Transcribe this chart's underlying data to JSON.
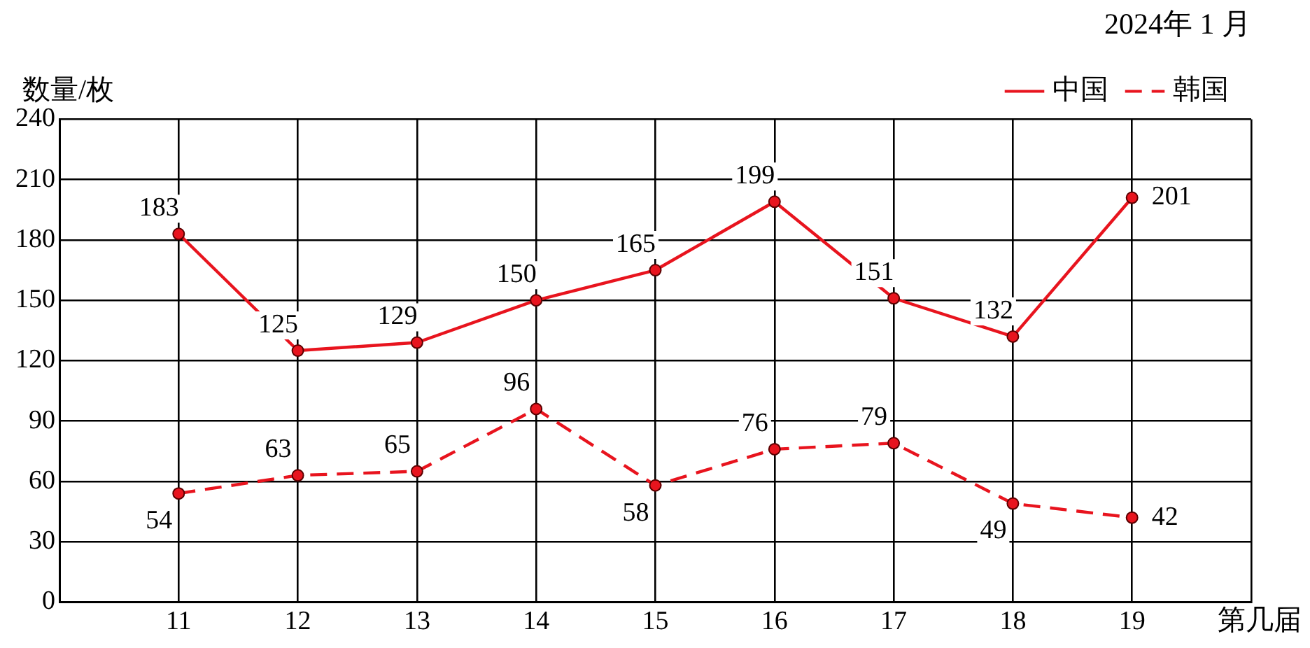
{
  "chart_data": {
    "type": "line",
    "title": "2024年 1 月",
    "xlabel": "第几届",
    "ylabel": "数量/枚",
    "x": [
      11,
      12,
      13,
      14,
      15,
      16,
      17,
      18,
      19
    ],
    "xlim": [
      10,
      20
    ],
    "xticks": [
      {
        "value": 10,
        "label": null
      },
      11,
      12,
      13,
      14,
      15,
      16,
      17,
      18,
      19,
      {
        "value": 20,
        "label": null
      }
    ],
    "ylim": [
      0,
      240
    ],
    "yticks": [
      0,
      30,
      60,
      90,
      120,
      150,
      180,
      210,
      240
    ],
    "series": [
      {
        "name": "中国",
        "color": "#e8141e",
        "line_style": "solid",
        "values": [
          183,
          125,
          129,
          150,
          165,
          199,
          151,
          132,
          201
        ]
      },
      {
        "name": "韩国",
        "color": "#e8141e",
        "line_style": "dashed",
        "values": [
          54,
          63,
          65,
          96,
          58,
          76,
          79,
          49,
          42
        ]
      }
    ],
    "marker": "circle",
    "data_labels": true,
    "grid": true,
    "legend": "top right"
  }
}
